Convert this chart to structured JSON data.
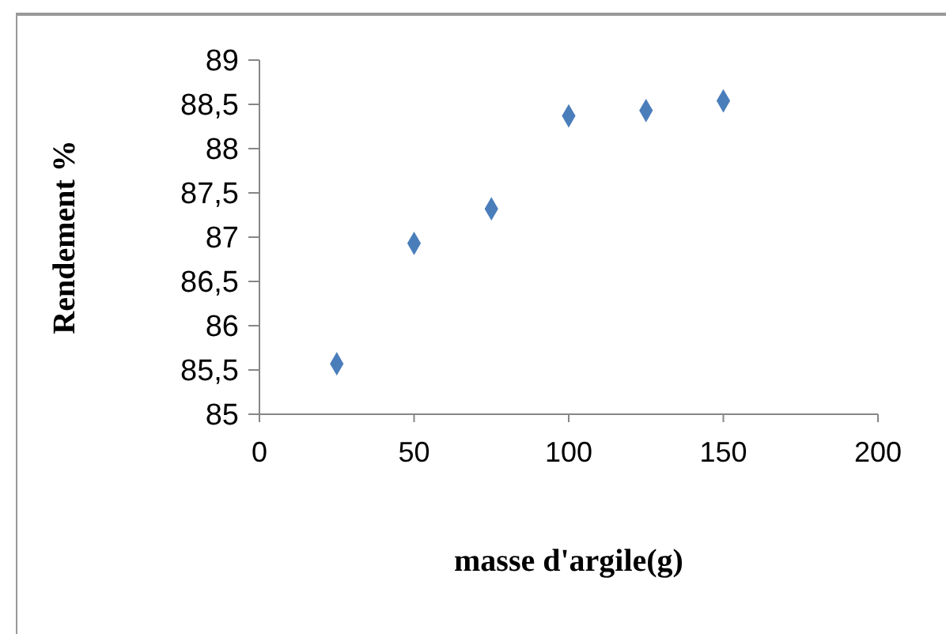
{
  "chart_data": {
    "type": "scatter",
    "xlabel": "masse d'argile(g)",
    "ylabel": "Rendement %",
    "x": [
      25,
      50,
      75,
      100,
      125,
      150
    ],
    "series": [
      {
        "color": "#4a7ebb",
        "values": [
          85.57,
          86.93,
          87.32,
          88.37,
          88.43,
          88.54
        ]
      }
    ],
    "xlim": [
      0,
      200
    ],
    "xticks": [
      0,
      50,
      100,
      150,
      200
    ],
    "ylim": [
      85,
      89
    ],
    "yticks": [
      85,
      {
        "value": 85.5,
        "label": "85,5"
      },
      86,
      {
        "value": 86.5,
        "label": "86,5"
      },
      87,
      {
        "value": 87.5,
        "label": "87,5"
      },
      88,
      {
        "value": 88.5,
        "label": "88,5"
      },
      89
    ],
    "grid": false,
    "marker": "diamond"
  }
}
